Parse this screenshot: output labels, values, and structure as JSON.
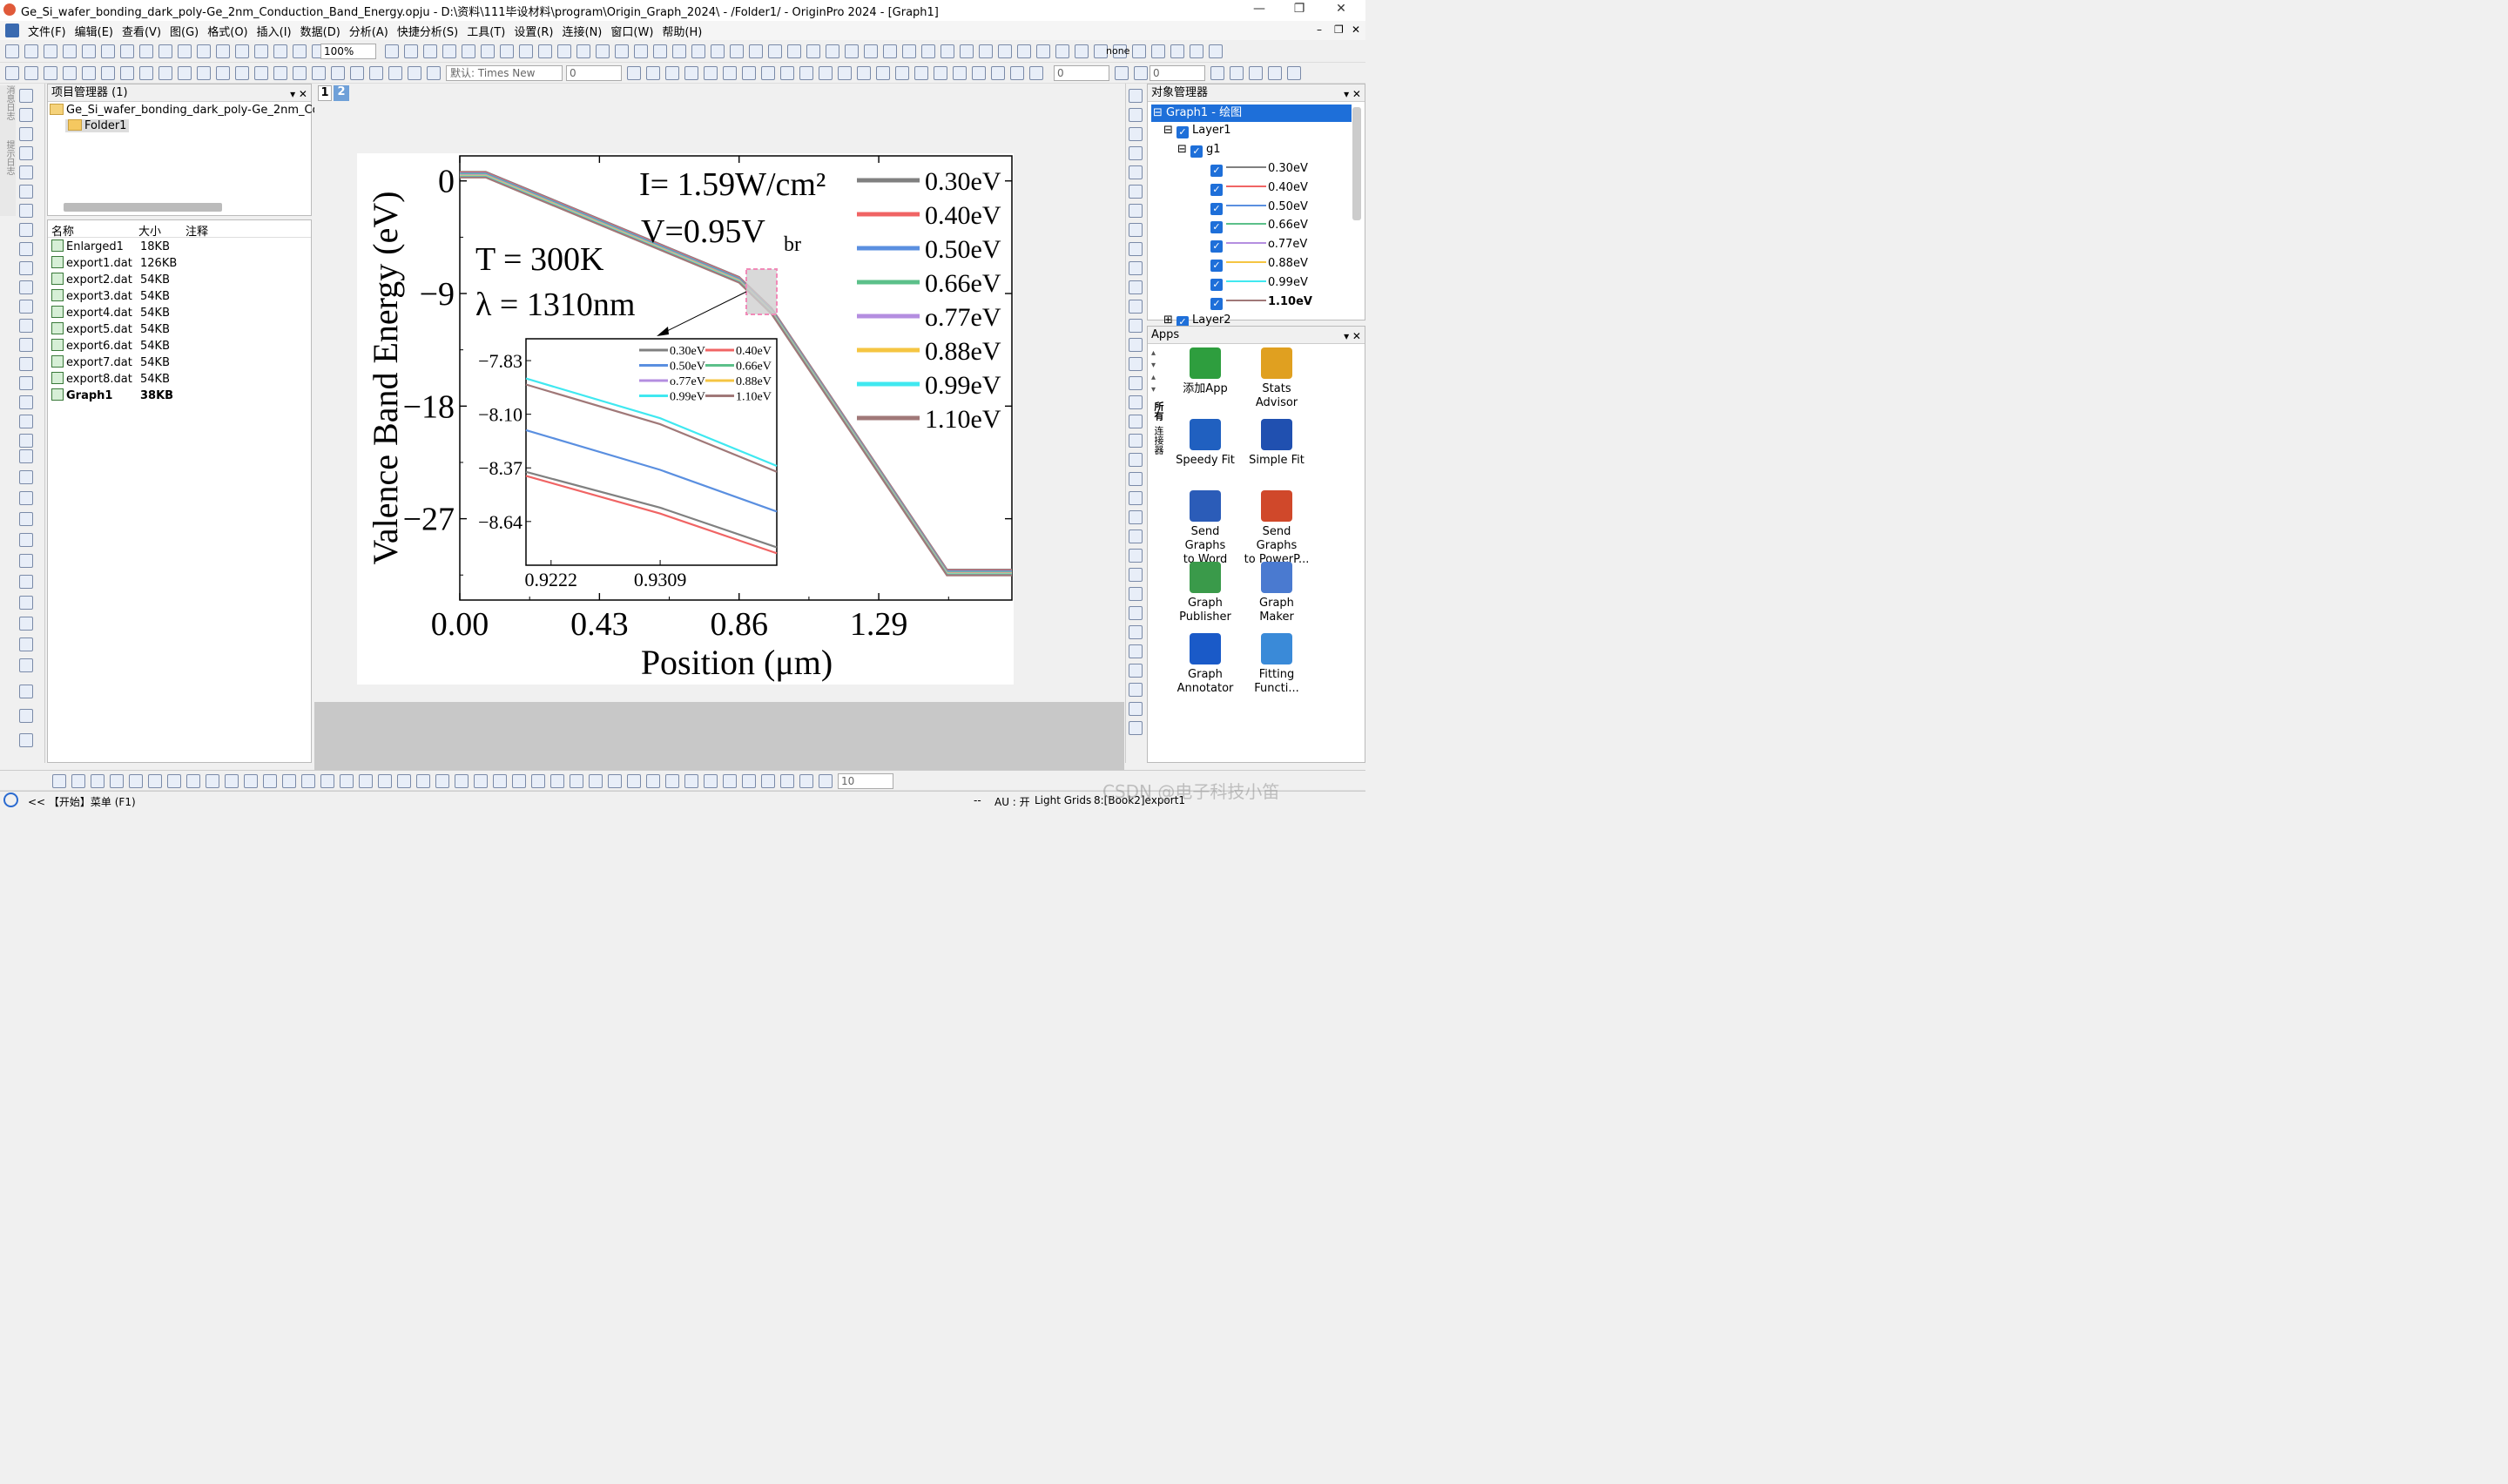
{
  "window": {
    "title": "Ge_Si_wafer_bonding_dark_poly-Ge_2nm_Conduction_Band_Energy.opju - D:\\资料\\111毕设材料\\program\\Origin_Graph_2024\\ - /Folder1/ - OriginPro 2024 - [Graph1]",
    "min_label": "—",
    "max_label": "❐",
    "close_label": "✕"
  },
  "menu": [
    "文件(F)",
    "编辑(E)",
    "查看(V)",
    "图(G)",
    "格式(O)",
    "插入(I)",
    "数据(D)",
    "分析(A)",
    "快捷分析(S)",
    "工具(T)",
    "设置(R)",
    "连接(N)",
    "窗口(W)",
    "帮助(H)"
  ],
  "toolbar": {
    "zoom": "100%",
    "font": "默认: Times New",
    "font_size": "0",
    "line_size": "0",
    "last_size": "0",
    "none_label": "none",
    "bottom_size": "10"
  },
  "project": {
    "header": "项目管理器 (1)",
    "root": "Ge_Si_wafer_bonding_dark_poly-Ge_2nm_Co",
    "folder": "Folder1",
    "columns": [
      "名称",
      "大小",
      "注释"
    ],
    "files": [
      {
        "name": "Enlarged1",
        "size": "18KB"
      },
      {
        "name": "export1.dat",
        "size": "126KB"
      },
      {
        "name": "export2.dat",
        "size": "54KB"
      },
      {
        "name": "export3.dat",
        "size": "54KB"
      },
      {
        "name": "export4.dat",
        "size": "54KB"
      },
      {
        "name": "export5.dat",
        "size": "54KB"
      },
      {
        "name": "export6.dat",
        "size": "54KB"
      },
      {
        "name": "export7.dat",
        "size": "54KB"
      },
      {
        "name": "export8.dat",
        "size": "54KB"
      },
      {
        "name": "Graph1",
        "size": "38KB"
      }
    ]
  },
  "left_tabs": [
    "消息日志",
    "提示日志"
  ],
  "page_tabs": [
    "1",
    "2"
  ],
  "object_manager": {
    "header": "对象管理器",
    "graph": "Graph1 - 绘图",
    "layer1": "Layer1",
    "group": "g1",
    "items": [
      {
        "label": "0.30eV",
        "color": "#808080"
      },
      {
        "label": "0.40eV",
        "color": "#f06464"
      },
      {
        "label": "0.50eV",
        "color": "#5a8fe0"
      },
      {
        "label": "0.66eV",
        "color": "#5cc08a"
      },
      {
        "label": "o.77eV",
        "color": "#b48ee0"
      },
      {
        "label": "0.88eV",
        "color": "#f5c542"
      },
      {
        "label": "0.99eV",
        "color": "#40e8f0"
      },
      {
        "label": "1.10eV",
        "color": "#a07878"
      }
    ],
    "layer2": "Layer2"
  },
  "apps": {
    "header": "Apps",
    "side_tabs": [
      "所有",
      "连接器"
    ],
    "list": [
      {
        "line1": "添加App",
        "line2": "",
        "color": "#2e9e3e"
      },
      {
        "line1": "Stats",
        "line2": "Advisor",
        "color": "#e0a020"
      },
      {
        "line1": "Speedy Fit",
        "line2": "",
        "color": "#2060c0"
      },
      {
        "line1": "Simple Fit",
        "line2": "",
        "color": "#2050b0"
      },
      {
        "line1": "Send Graphs",
        "line2": "to Word",
        "color": "#2b5cb8"
      },
      {
        "line1": "Send Graphs",
        "line2": "to PowerP...",
        "color": "#d0482a"
      },
      {
        "line1": "Graph",
        "line2": "Publisher",
        "color": "#3a9a4a"
      },
      {
        "line1": "Graph",
        "line2": "Maker",
        "color": "#4a7ad0"
      },
      {
        "line1": "Graph",
        "line2": "Annotator",
        "color": "#1a5ac8"
      },
      {
        "line1": "Fitting",
        "line2": "Functi...",
        "color": "#3a8ad8"
      }
    ]
  },
  "status": {
    "start": "<< 【开始】菜单 (F1)",
    "dots": "--",
    "au": "AU : 开",
    "grids": "Light Grids",
    "book": "8:[Book2]export1",
    "watermark": "CSDN @电子科技小笛"
  },
  "chart_data": {
    "type": "line",
    "xlabel": "Position (μm)",
    "ylabel": "Valence Band Energy (eV)",
    "xticks": [
      "0.00",
      "0.43",
      "0.86",
      "1.29"
    ],
    "yticks": [
      "0",
      "−9",
      "−18",
      "−27"
    ],
    "xlim": [
      0.0,
      1.7
    ],
    "ylim": [
      -33.5,
      2.0
    ],
    "annotations": [
      "I= 1.59W/cm²",
      "V=0.95V",
      "br",
      "T = 300K",
      "λ = 1310nm"
    ],
    "series": [
      {
        "name": "0.30eV",
        "color": "#808080"
      },
      {
        "name": "0.40eV",
        "color": "#f06464"
      },
      {
        "name": "0.50eV",
        "color": "#5a8fe0"
      },
      {
        "name": "0.66eV",
        "color": "#5cc08a"
      },
      {
        "name": "o.77eV",
        "color": "#b48ee0"
      },
      {
        "name": "0.88eV",
        "color": "#f5c542"
      },
      {
        "name": "0.99eV",
        "color": "#40e8f0"
      },
      {
        "name": "1.10eV",
        "color": "#a07878"
      }
    ],
    "x": [
      0.0,
      0.08,
      0.86,
      0.96,
      1.5,
      1.7
    ],
    "y": [
      0.5,
      0.5,
      -7.9,
      -10.4,
      -31.3,
      -31.3
    ],
    "inset": {
      "xticks": [
        "0.9222",
        "0.9309"
      ],
      "yticks": [
        "−7.83",
        "−8.10",
        "−8.37",
        "−8.64"
      ],
      "xlim": [
        0.9202,
        0.9402
      ],
      "ylim": [
        -8.86,
        -7.72
      ],
      "lines": [
        {
          "name": "0.99eV",
          "color": "#40e8f0",
          "x": [
            0.9202,
            0.9309,
            0.9402
          ],
          "y": [
            -7.92,
            -8.12,
            -8.36
          ]
        },
        {
          "name": "1.10eV",
          "color": "#a07878",
          "x": [
            0.9202,
            0.9309,
            0.9402
          ],
          "y": [
            -7.95,
            -8.15,
            -8.39
          ]
        },
        {
          "name": "0.50eV",
          "color": "#5a8fe0",
          "x": [
            0.9202,
            0.9309,
            0.9402
          ],
          "y": [
            -8.18,
            -8.38,
            -8.59
          ]
        },
        {
          "name": "0.30eV",
          "color": "#808080",
          "x": [
            0.9202,
            0.9309,
            0.9402
          ],
          "y": [
            -8.39,
            -8.57,
            -8.77
          ]
        },
        {
          "name": "0.40eV",
          "color": "#f06464",
          "x": [
            0.9202,
            0.9309,
            0.9402
          ],
          "y": [
            -8.41,
            -8.6,
            -8.8
          ]
        }
      ]
    }
  }
}
